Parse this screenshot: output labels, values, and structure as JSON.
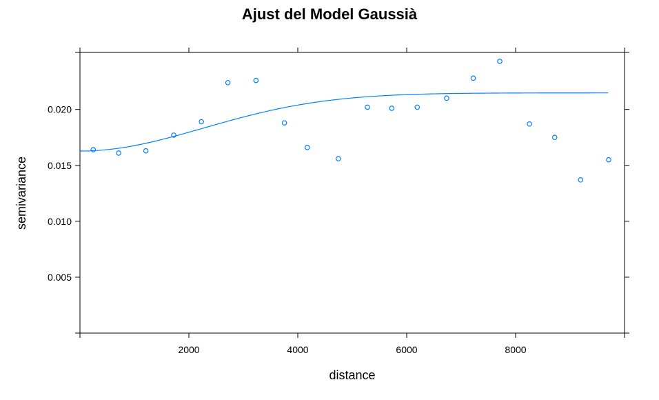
{
  "chart_data": {
    "type": "scatter",
    "title": "Ajust del Model Gaussià",
    "xlabel": "distance",
    "ylabel": "semivariance",
    "xlim": [
      0,
      10000
    ],
    "ylim": [
      0,
      0.0251
    ],
    "x_ticks": [
      2000,
      4000,
      6000,
      8000
    ],
    "x_tick_labels": [
      "2000",
      "4000",
      "6000",
      "8000"
    ],
    "y_ticks": [
      0.005,
      0.01,
      0.015,
      0.02
    ],
    "y_tick_labels": [
      "0.005",
      "0.010",
      "0.015",
      "0.020"
    ],
    "grid": false,
    "legend": "none",
    "point_color": "#0080ff",
    "line_color": "#0080ff",
    "series": [
      {
        "kind": "points",
        "x": [
          244,
          712,
          1210,
          1722,
          2230,
          2717,
          3232,
          3755,
          4174,
          4744,
          5279,
          5726,
          6193,
          6733,
          7222,
          7709,
          8254,
          8718,
          9193,
          9708
        ],
        "y": [
          0.0164,
          0.0161,
          0.0163,
          0.0177,
          0.0189,
          0.0224,
          0.0226,
          0.0188,
          0.0166,
          0.0156,
          0.0202,
          0.0201,
          0.0202,
          0.021,
          0.0228,
          0.0243,
          0.0187,
          0.0175,
          0.0137,
          0.0155
        ]
      },
      {
        "kind": "fitted-line",
        "model": "Gaussian",
        "nugget": 0.01628,
        "sill": 0.02148,
        "range": 3200,
        "x_start": 0,
        "x_end": 9700
      }
    ]
  }
}
